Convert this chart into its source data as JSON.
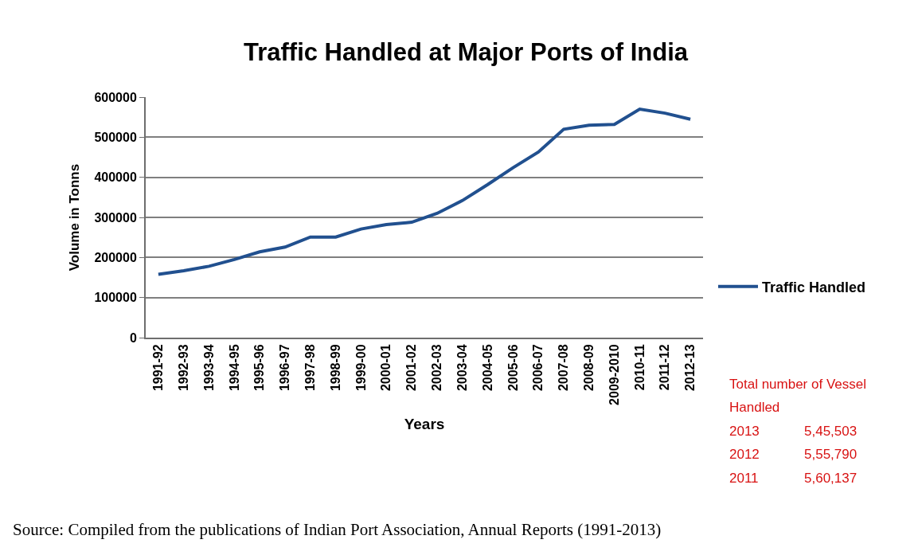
{
  "chart_data": {
    "type": "line",
    "title": "Traffic Handled at Major Ports of India",
    "xlabel": "Years",
    "ylabel": "Volume in Tonns",
    "categories": [
      "1991-92",
      "1992-93",
      "1993-94",
      "1994-95",
      "1995-96",
      "1996-97",
      "1997-98",
      "1998-99",
      "1999-00",
      "2000-01",
      "2001-02",
      "2002-03",
      "2003-04",
      "2004-05",
      "2005-06",
      "2006-07",
      "2007-08",
      "2008-09",
      "2009-2010",
      "2010-11",
      "2011-12",
      "2012-13"
    ],
    "series": [
      {
        "name": "Traffic Handled",
        "color": "#21508f",
        "values": [
          158000,
          167000,
          178000,
          195000,
          214000,
          226000,
          251000,
          251000,
          271000,
          282000,
          288000,
          310000,
          342000,
          382000,
          424000,
          463000,
          520000,
          530000,
          532000,
          570000,
          560000,
          545000
        ]
      }
    ],
    "ylim": [
      0,
      600000
    ],
    "yticks": [
      0,
      100000,
      200000,
      300000,
      400000,
      500000,
      600000
    ],
    "grid": "y",
    "legend": "right",
    "marker": "none",
    "line_style": "solid",
    "annotations": [
      "Total number of Vessel Handled",
      "2013 5,45,503",
      "2012 5,55,790",
      "2011 5,60,137",
      "Source: Compiled from the publications of Indian Port Association, Annual Reports (1991-2013)"
    ]
  }
}
